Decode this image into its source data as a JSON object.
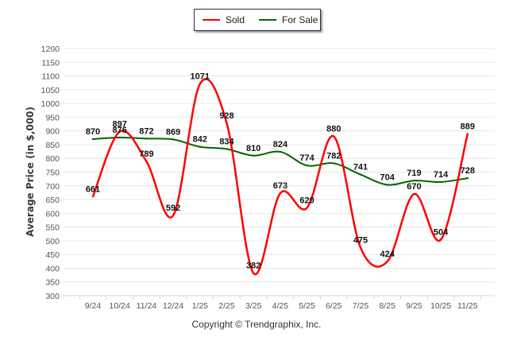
{
  "chart_data": {
    "type": "line",
    "title": "",
    "xlabel": "",
    "ylabel": "Average Price (in $,000)",
    "ylim": [
      300,
      1200
    ],
    "ytick_step": 50,
    "grid": true,
    "legend_position": "top-center",
    "categories": [
      "9/24",
      "10/24",
      "11/24",
      "12/24",
      "1/25",
      "2/25",
      "3/25",
      "4/25",
      "5/25",
      "6/25",
      "7/25",
      "8/25",
      "9/25",
      "10/25",
      "11/25"
    ],
    "series": [
      {
        "name": "Sold",
        "color": "#ff0000",
        "values": [
          661,
          897,
          789,
          592,
          1071,
          928,
          382,
          673,
          620,
          880,
          475,
          424,
          670,
          504,
          889
        ]
      },
      {
        "name": "For Sale",
        "color": "#006400",
        "values": [
          870,
          876,
          872,
          869,
          842,
          834,
          810,
          824,
          774,
          782,
          741,
          704,
          719,
          714,
          728
        ]
      }
    ],
    "yticks": [
      "300",
      "350",
      "400",
      "450",
      "500",
      "550",
      "600",
      "650",
      "700",
      "750",
      "800",
      "850",
      "900",
      "950",
      "1000",
      "1050",
      "1100",
      "1150",
      "1200"
    ]
  },
  "legend": {
    "items": [
      {
        "label": "Sold",
        "color": "#ff0000"
      },
      {
        "label": "For Sale",
        "color": "#006400"
      }
    ]
  },
  "footer": {
    "copyright": "Copyright © Trendgraphix, Inc."
  }
}
